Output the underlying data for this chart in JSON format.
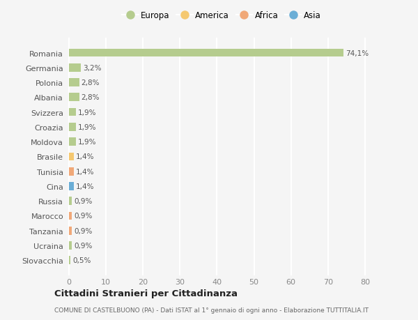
{
  "countries": [
    "Romania",
    "Germania",
    "Polonia",
    "Albania",
    "Svizzera",
    "Croazia",
    "Moldova",
    "Brasile",
    "Tunisia",
    "Cina",
    "Russia",
    "Marocco",
    "Tanzania",
    "Ucraina",
    "Slovacchia"
  ],
  "values": [
    74.1,
    3.2,
    2.8,
    2.8,
    1.9,
    1.9,
    1.9,
    1.4,
    1.4,
    1.4,
    0.9,
    0.9,
    0.9,
    0.9,
    0.5
  ],
  "labels": [
    "74,1%",
    "3,2%",
    "2,8%",
    "2,8%",
    "1,9%",
    "1,9%",
    "1,9%",
    "1,4%",
    "1,4%",
    "1,4%",
    "0,9%",
    "0,9%",
    "0,9%",
    "0,9%",
    "0,5%"
  ],
  "continents": [
    "Europa",
    "Europa",
    "Europa",
    "Europa",
    "Europa",
    "Europa",
    "Europa",
    "America",
    "Africa",
    "Asia",
    "Europa",
    "Africa",
    "Africa",
    "Europa",
    "Europa"
  ],
  "continent_colors": {
    "Europa": "#b5cc8e",
    "America": "#f5c870",
    "Africa": "#f0a878",
    "Asia": "#6baed6"
  },
  "legend_order": [
    "Europa",
    "America",
    "Africa",
    "Asia"
  ],
  "bg_color": "#f5f5f5",
  "grid_color": "#ffffff",
  "title1": "Cittadini Stranieri per Cittadinanza",
  "title2": "COMUNE DI CASTELBUONO (PA) - Dati ISTAT al 1° gennaio di ogni anno - Elaborazione TUTTITALIA.IT",
  "xlabel_ticks": [
    0,
    10,
    20,
    30,
    40,
    50,
    60,
    70,
    80
  ],
  "xlim": [
    -0.5,
    83
  ]
}
